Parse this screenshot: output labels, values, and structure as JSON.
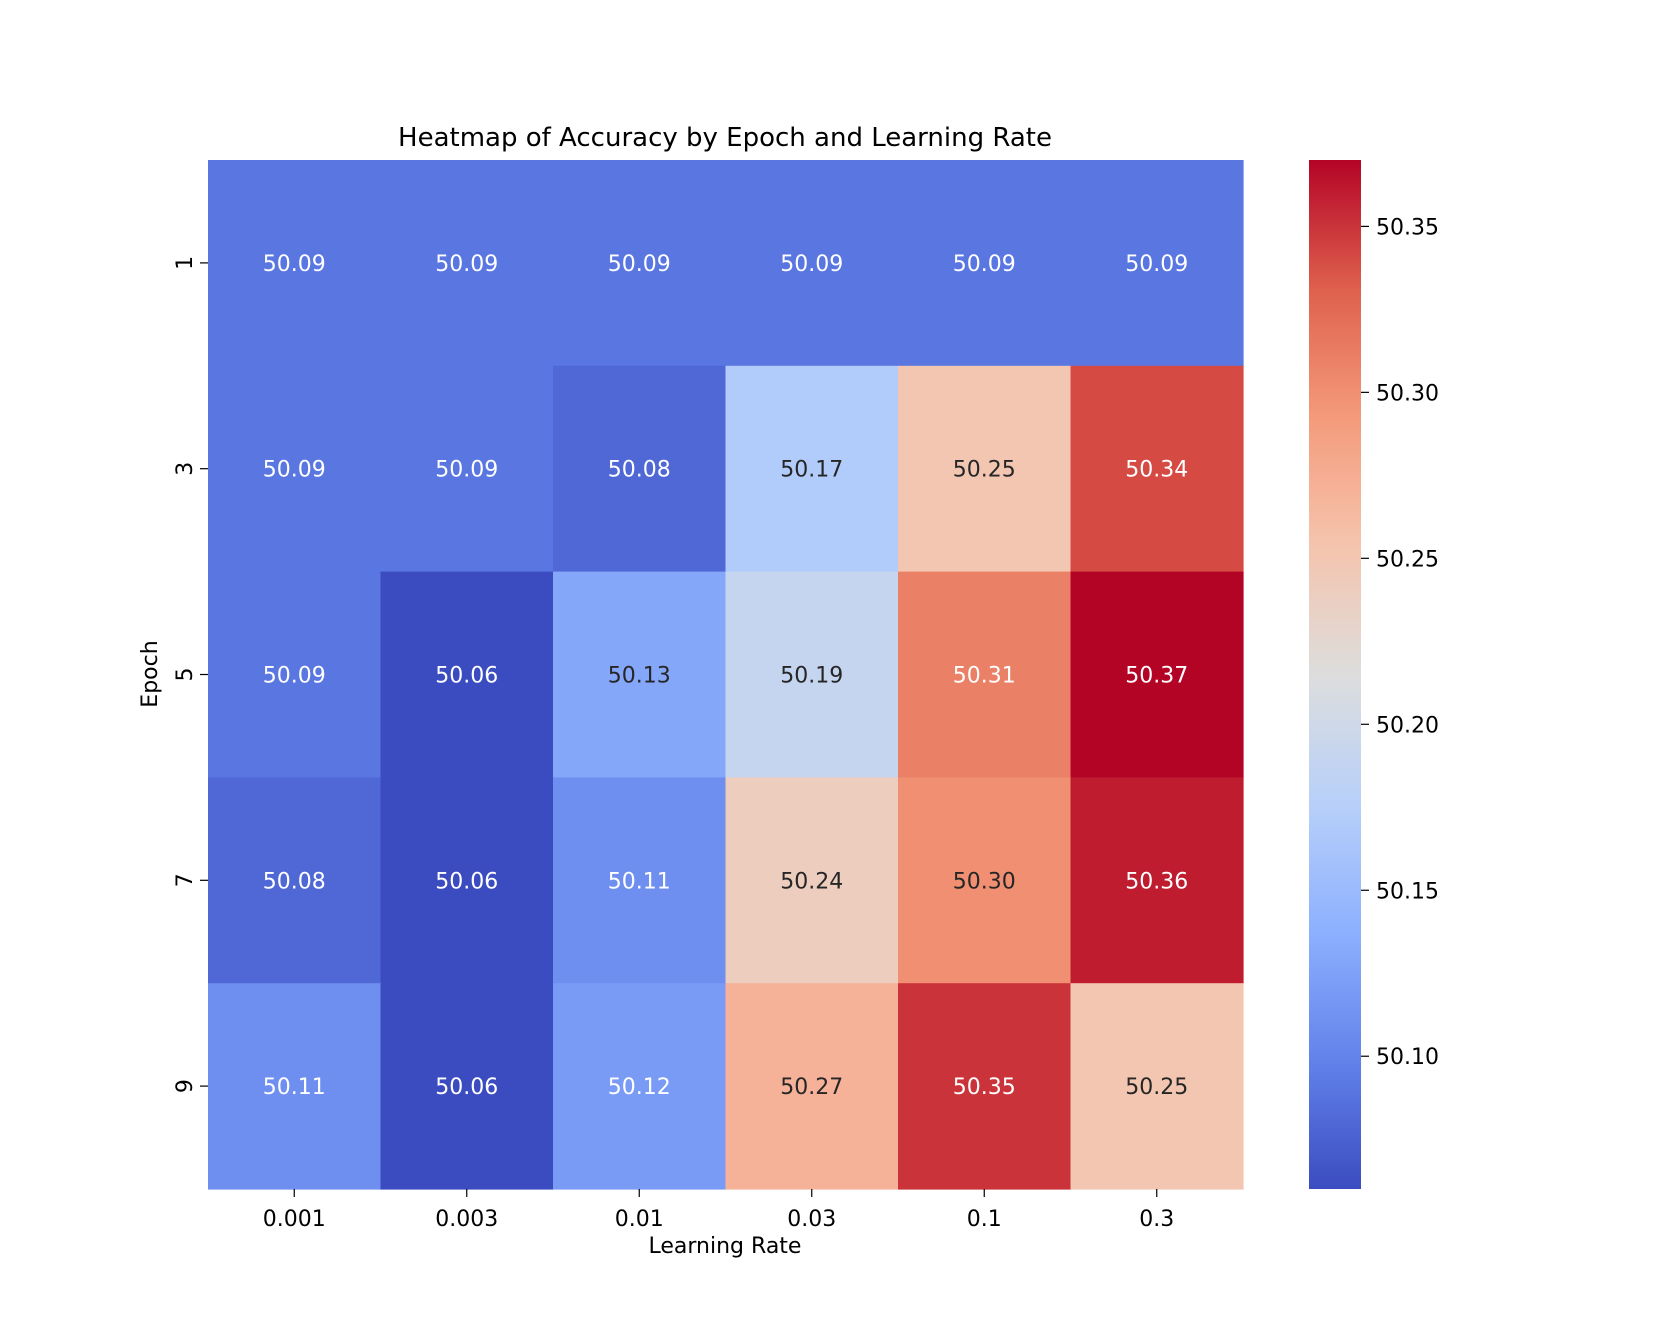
{
  "chart_data": {
    "type": "heatmap",
    "title": "Heatmap of Accuracy by Epoch and Learning Rate",
    "xlabel": "Learning Rate",
    "ylabel": "Epoch",
    "x_categories": [
      "0.001",
      "0.003",
      "0.01",
      "0.03",
      "0.1",
      "0.3"
    ],
    "y_categories": [
      "1",
      "3",
      "5",
      "7",
      "9"
    ],
    "values": [
      [
        50.09,
        50.09,
        50.09,
        50.09,
        50.09,
        50.09
      ],
      [
        50.09,
        50.09,
        50.08,
        50.17,
        50.25,
        50.34
      ],
      [
        50.09,
        50.06,
        50.13,
        50.19,
        50.31,
        50.37
      ],
      [
        50.08,
        50.06,
        50.11,
        50.24,
        50.3,
        50.36
      ],
      [
        50.11,
        50.06,
        50.12,
        50.27,
        50.35,
        50.25
      ]
    ],
    "value_format_decimals": 2,
    "colormap": "coolwarm",
    "colorbar": {
      "vmin": 50.06,
      "vmax": 50.37,
      "ticks": [
        50.1,
        50.15,
        50.2,
        50.25,
        50.3,
        50.35
      ],
      "tick_labels": [
        "50.10",
        "50.15",
        "50.20",
        "50.25",
        "50.30",
        "50.35"
      ]
    },
    "grid": false,
    "legend": "colorbar-right"
  }
}
